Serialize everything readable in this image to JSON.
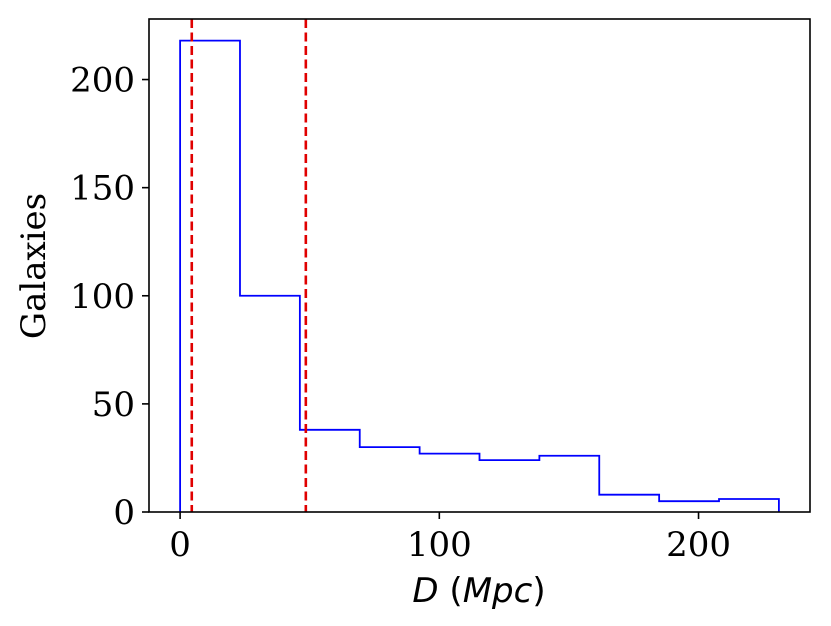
{
  "chart_data": {
    "type": "histogram",
    "xlabel": {
      "symbol": "D",
      "unit": "Mpc"
    },
    "ylabel": "Galaxies",
    "xlim": [
      -12,
      243
    ],
    "ylim": [
      0,
      228
    ],
    "xticks": [
      0,
      100,
      200
    ],
    "yticks": [
      0,
      50,
      100,
      150,
      200
    ],
    "grid": false,
    "legend": "none",
    "bin_edges": [
      0,
      23.1,
      46.2,
      69.3,
      92.4,
      115.5,
      138.6,
      161.7,
      184.8,
      207.9,
      231
    ],
    "counts": [
      218,
      100,
      38,
      30,
      27,
      24,
      26,
      8,
      5,
      6
    ],
    "vertical_lines": [
      4.5,
      48.5
    ],
    "colors": {
      "histogram": "#0000ff",
      "vlines": "#e00000",
      "axes": "#000000"
    }
  }
}
